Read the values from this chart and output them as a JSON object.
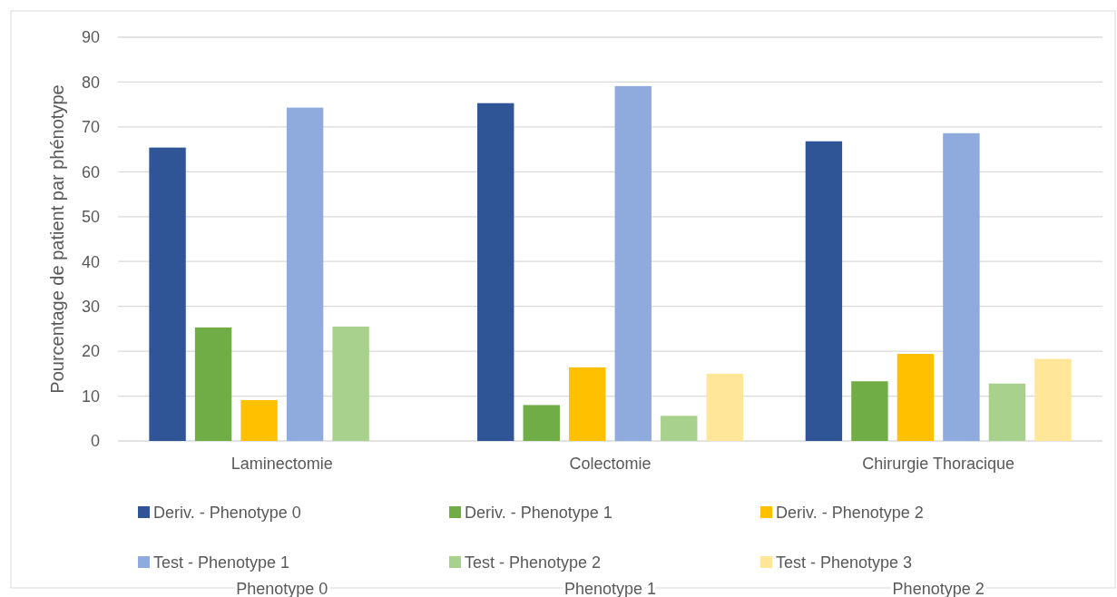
{
  "chart_data": {
    "type": "bar",
    "ylabel": "Pourcentage de patient par phénotype",
    "categories": [
      "Laminectomie",
      "Colectomie",
      "Chirurgie Thoracique"
    ],
    "series": [
      {
        "name": "Deriv. - Phenotype 0",
        "color": "#2f5597",
        "values": [
          65.4,
          75.3,
          66.8
        ]
      },
      {
        "name": "Deriv. - Phenotype 1",
        "color": "#70ad47",
        "values": [
          25.3,
          8.0,
          13.3
        ]
      },
      {
        "name": "Deriv. - Phenotype 2",
        "color": "#ffc000",
        "values": [
          9.1,
          16.4,
          19.4
        ]
      },
      {
        "name": "Test - Phenotype 1",
        "color": "#8faadc",
        "values": [
          74.3,
          79.1,
          68.6
        ]
      },
      {
        "name": "Test - Phenotype 2",
        "color": "#a9d18e",
        "values": [
          25.5,
          5.6,
          12.8
        ]
      },
      {
        "name": "Test - Phenotype 3",
        "color": "#ffe699",
        "values": [
          null,
          15.0,
          18.3
        ]
      }
    ],
    "ylim": [
      0,
      90
    ],
    "yticks": [
      0,
      10,
      20,
      30,
      40,
      50,
      60,
      70,
      80,
      90
    ],
    "grid": "y",
    "legend": "bottom",
    "annotations": [
      "Phenotype 0",
      "Phenotype 1",
      "Phenotype 2"
    ]
  }
}
